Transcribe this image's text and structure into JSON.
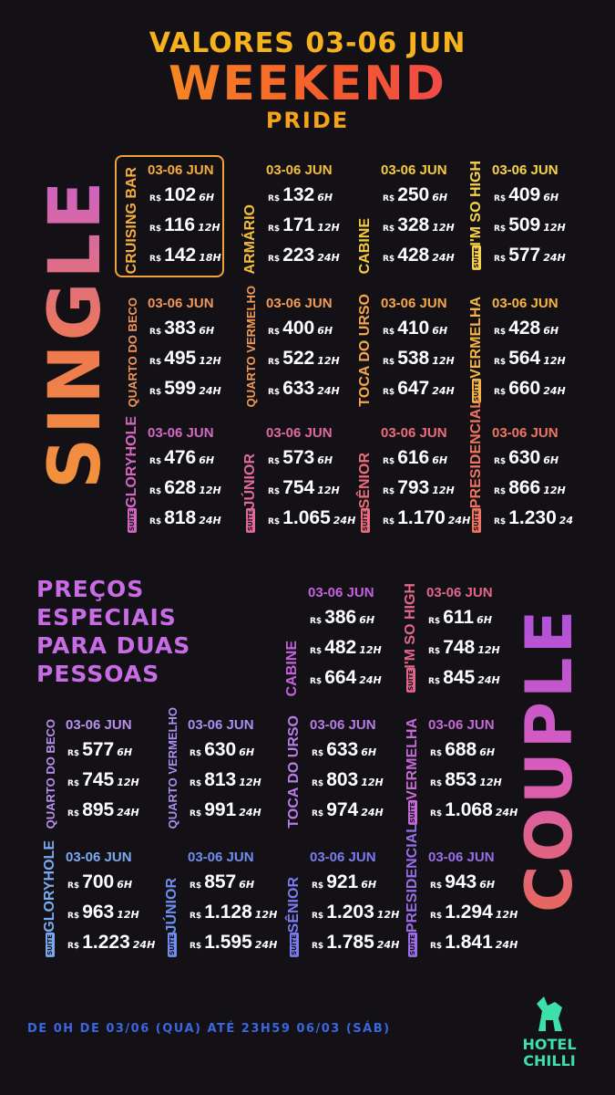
{
  "header": {
    "line1": "VALORES 03-06 JUN",
    "title": "WEEKEND",
    "subtitle": "PRIDE"
  },
  "single": {
    "label": "SINGLE",
    "rooms": [
      {
        "name": "CRUISING BAR",
        "date": "03-06 JUN",
        "prices": [
          {
            "currency": "R$",
            "amount": "102",
            "duration": "6H"
          },
          {
            "currency": "R$",
            "amount": "116",
            "duration": "12H"
          },
          {
            "currency": "R$",
            "amount": "142",
            "duration": "18H"
          }
        ]
      },
      {
        "name": "ARMÁRIO",
        "date": "03-06 JUN",
        "prices": [
          {
            "currency": "R$",
            "amount": "132",
            "duration": "6H"
          },
          {
            "currency": "R$",
            "amount": "171",
            "duration": "12H"
          },
          {
            "currency": "R$",
            "amount": "223",
            "duration": "24H"
          }
        ]
      },
      {
        "name": "CABINE",
        "date": "03-06 JUN",
        "prices": [
          {
            "currency": "R$",
            "amount": "250",
            "duration": "6H"
          },
          {
            "currency": "R$",
            "amount": "328",
            "duration": "12H"
          },
          {
            "currency": "R$",
            "amount": "428",
            "duration": "24H"
          }
        ]
      },
      {
        "name": "I'M SO HIGH",
        "badge": "SUÍTE",
        "date": "03-06 JUN",
        "prices": [
          {
            "currency": "R$",
            "amount": "409",
            "duration": "6H"
          },
          {
            "currency": "R$",
            "amount": "509",
            "duration": "12H"
          },
          {
            "currency": "R$",
            "amount": "577",
            "duration": "24H"
          }
        ]
      },
      {
        "name": "QUARTO DO BECO",
        "date": "03-06 JUN",
        "prices": [
          {
            "currency": "R$",
            "amount": "383",
            "duration": "6H"
          },
          {
            "currency": "R$",
            "amount": "495",
            "duration": "12H"
          },
          {
            "currency": "R$",
            "amount": "599",
            "duration": "24H"
          }
        ]
      },
      {
        "name": "QUARTO VERMELHO",
        "date": "03-06 JUN",
        "prices": [
          {
            "currency": "R$",
            "amount": "400",
            "duration": "6H"
          },
          {
            "currency": "R$",
            "amount": "522",
            "duration": "12H"
          },
          {
            "currency": "R$",
            "amount": "633",
            "duration": "24H"
          }
        ]
      },
      {
        "name": "TOCA DO URSO",
        "date": "03-06 JUN",
        "prices": [
          {
            "currency": "R$",
            "amount": "410",
            "duration": "6H"
          },
          {
            "currency": "R$",
            "amount": "538",
            "duration": "12H"
          },
          {
            "currency": "R$",
            "amount": "647",
            "duration": "24H"
          }
        ]
      },
      {
        "name": "VERMELHA",
        "badge": "SUÍTE",
        "date": "03-06 JUN",
        "prices": [
          {
            "currency": "R$",
            "amount": "428",
            "duration": "6H"
          },
          {
            "currency": "R$",
            "amount": "564",
            "duration": "12H"
          },
          {
            "currency": "R$",
            "amount": "660",
            "duration": "24H"
          }
        ]
      },
      {
        "name": "GLORYHOLE",
        "badge": "SUÍTE",
        "date": "03-06 JUN",
        "prices": [
          {
            "currency": "R$",
            "amount": "476",
            "duration": "6H"
          },
          {
            "currency": "R$",
            "amount": "628",
            "duration": "12H"
          },
          {
            "currency": "R$",
            "amount": "818",
            "duration": "24H"
          }
        ]
      },
      {
        "name": "JÚNIOR",
        "badge": "SUÍTE",
        "date": "03-06 JUN",
        "prices": [
          {
            "currency": "R$",
            "amount": "573",
            "duration": "6H"
          },
          {
            "currency": "R$",
            "amount": "754",
            "duration": "12H"
          },
          {
            "currency": "R$",
            "amount": "1.065",
            "duration": "24H"
          }
        ]
      },
      {
        "name": "SÊNIOR",
        "badge": "SUÍTE",
        "date": "03-06 JUN",
        "prices": [
          {
            "currency": "R$",
            "amount": "616",
            "duration": "6H"
          },
          {
            "currency": "R$",
            "amount": "793",
            "duration": "12H"
          },
          {
            "currency": "R$",
            "amount": "1.170",
            "duration": "24H"
          }
        ]
      },
      {
        "name": "PRESIDENCIAL",
        "badge": "SUÍTE",
        "date": "03-06 JUN",
        "prices": [
          {
            "currency": "R$",
            "amount": "630",
            "duration": "6H"
          },
          {
            "currency": "R$",
            "amount": "866",
            "duration": "12H"
          },
          {
            "currency": "R$",
            "amount": "1.230",
            "duration": "24"
          }
        ]
      }
    ]
  },
  "couple": {
    "label": "COUPLE",
    "specials": [
      "PREÇOS",
      "ESPECIAIS",
      "PARA DUAS",
      "PESSOAS"
    ],
    "rooms": [
      {
        "name": "CABINE",
        "date": "03-06 JUN",
        "prices": [
          {
            "currency": "R$",
            "amount": "386",
            "duration": "6H"
          },
          {
            "currency": "R$",
            "amount": "482",
            "duration": "12H"
          },
          {
            "currency": "R$",
            "amount": "664",
            "duration": "24H"
          }
        ]
      },
      {
        "name": "I'M SO HIGH",
        "badge": "SUÍTE",
        "date": "03-06 JUN",
        "prices": [
          {
            "currency": "R$",
            "amount": "611",
            "duration": "6H"
          },
          {
            "currency": "R$",
            "amount": "748",
            "duration": "12H"
          },
          {
            "currency": "R$",
            "amount": "845",
            "duration": "24H"
          }
        ]
      },
      {
        "name": "QUARTO DO BECO",
        "date": "03-06 JUN",
        "prices": [
          {
            "currency": "R$",
            "amount": "577",
            "duration": "6H"
          },
          {
            "currency": "R$",
            "amount": "745",
            "duration": "12H"
          },
          {
            "currency": "R$",
            "amount": "895",
            "duration": "24H"
          }
        ]
      },
      {
        "name": "QUARTO VERMELHO",
        "date": "03-06 JUN",
        "prices": [
          {
            "currency": "R$",
            "amount": "630",
            "duration": "6H"
          },
          {
            "currency": "R$",
            "amount": "813",
            "duration": "12H"
          },
          {
            "currency": "R$",
            "amount": "991",
            "duration": "24H"
          }
        ]
      },
      {
        "name": "TOCA DO URSO",
        "date": "03-06 JUN",
        "prices": [
          {
            "currency": "R$",
            "amount": "633",
            "duration": "6H"
          },
          {
            "currency": "R$",
            "amount": "803",
            "duration": "12H"
          },
          {
            "currency": "R$",
            "amount": "974",
            "duration": "24H"
          }
        ]
      },
      {
        "name": "VERMELHA",
        "badge": "SUÍTE",
        "date": "03-06 JUN",
        "prices": [
          {
            "currency": "R$",
            "amount": "688",
            "duration": "6H"
          },
          {
            "currency": "R$",
            "amount": "853",
            "duration": "12H"
          },
          {
            "currency": "R$",
            "amount": "1.068",
            "duration": "24H"
          }
        ]
      },
      {
        "name": "GLORYHOLE",
        "badge": "SUÍTE",
        "date": "03-06 JUN",
        "prices": [
          {
            "currency": "R$",
            "amount": "700",
            "duration": "6H"
          },
          {
            "currency": "R$",
            "amount": "963",
            "duration": "12H"
          },
          {
            "currency": "R$",
            "amount": "1.223",
            "duration": "24H"
          }
        ]
      },
      {
        "name": "JÚNIOR",
        "badge": "SUÍTE",
        "date": "03-06 JUN",
        "prices": [
          {
            "currency": "R$",
            "amount": "857",
            "duration": "6H"
          },
          {
            "currency": "R$",
            "amount": "1.128",
            "duration": "12H"
          },
          {
            "currency": "R$",
            "amount": "1.595",
            "duration": "24H"
          }
        ]
      },
      {
        "name": "SÊNIOR",
        "badge": "SUÍTE",
        "date": "03-06 JUN",
        "prices": [
          {
            "currency": "R$",
            "amount": "921",
            "duration": "6H"
          },
          {
            "currency": "R$",
            "amount": "1.203",
            "duration": "12H"
          },
          {
            "currency": "R$",
            "amount": "1.785",
            "duration": "24H"
          }
        ]
      },
      {
        "name": "PRESIDENCIAL",
        "badge": "SUÍTE",
        "date": "03-06 JUN",
        "prices": [
          {
            "currency": "R$",
            "amount": "943",
            "duration": "6H"
          },
          {
            "currency": "R$",
            "amount": "1.294",
            "duration": "12H"
          },
          {
            "currency": "R$",
            "amount": "1.841",
            "duration": "24H"
          }
        ]
      }
    ]
  },
  "footer": {
    "note": "DE 0H DE 03/06 (QUA) ATÉ 23H59 06/03 (SÁB)",
    "logo": [
      "HOTEL",
      "CHILLI"
    ]
  }
}
